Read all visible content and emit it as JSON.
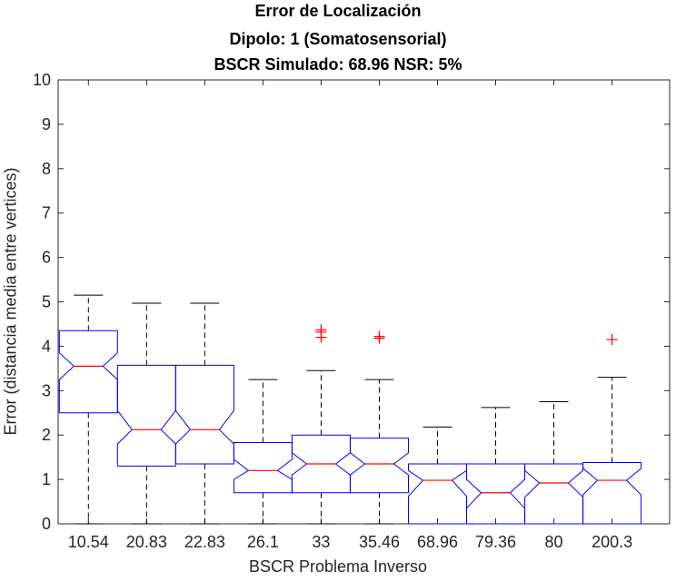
{
  "chart_data": {
    "type": "box",
    "title_lines": [
      "Error de Localización",
      "Dipolo: 1 (Somatosensorial)",
      "BSCR Simulado: 68.96 NSR: 5%"
    ],
    "xlabel": "BSCR Problema Inverso",
    "ylabel": "Error (distancia media entre vertices)",
    "ylim": [
      0,
      10
    ],
    "yticks": [
      0,
      1,
      2,
      3,
      4,
      5,
      6,
      7,
      8,
      9,
      10
    ],
    "categories": [
      "10.54",
      "20.83",
      "22.83",
      "26.1",
      "33",
      "35.46",
      "68.96",
      "79.36",
      "80",
      "200.3"
    ],
    "boxes": [
      {
        "whisker_low": 0,
        "q1": 2.5,
        "notch_low": 3.25,
        "median": 3.55,
        "notch_high": 3.85,
        "q3": 4.35,
        "whisker_high": 5.15,
        "outliers": []
      },
      {
        "whisker_low": 0,
        "q1": 1.3,
        "notch_low": 1.8,
        "median": 2.12,
        "notch_high": 2.55,
        "q3": 3.57,
        "whisker_high": 4.97,
        "outliers": []
      },
      {
        "whisker_low": 0,
        "q1": 1.35,
        "notch_low": 1.8,
        "median": 2.12,
        "notch_high": 2.55,
        "q3": 3.57,
        "whisker_high": 4.97,
        "outliers": []
      },
      {
        "whisker_low": 0,
        "q1": 0.7,
        "notch_low": 1.0,
        "median": 1.2,
        "notch_high": 1.45,
        "q3": 1.83,
        "whisker_high": 3.25,
        "outliers": []
      },
      {
        "whisker_low": 0,
        "q1": 0.7,
        "notch_low": 1.1,
        "median": 1.35,
        "notch_high": 1.6,
        "q3": 2.0,
        "whisker_high": 3.45,
        "outliers": [
          4.37,
          4.32,
          4.2
        ]
      },
      {
        "whisker_low": 0,
        "q1": 0.7,
        "notch_low": 1.1,
        "median": 1.35,
        "notch_high": 1.6,
        "q3": 1.93,
        "whisker_high": 3.25,
        "outliers": [
          4.22,
          4.18
        ]
      },
      {
        "whisker_low": 0,
        "q1": 0,
        "notch_low": 0.62,
        "median": 0.98,
        "notch_high": 1.2,
        "q3": 1.35,
        "whisker_high": 2.18,
        "outliers": []
      },
      {
        "whisker_low": 0,
        "q1": 0,
        "notch_low": 0.35,
        "median": 0.7,
        "notch_high": 1.0,
        "q3": 1.35,
        "whisker_high": 2.62,
        "outliers": []
      },
      {
        "whisker_low": 0,
        "q1": 0,
        "notch_low": 0.6,
        "median": 0.92,
        "notch_high": 1.2,
        "q3": 1.35,
        "whisker_high": 2.75,
        "outliers": []
      },
      {
        "whisker_low": 0,
        "q1": 0,
        "notch_low": 0.65,
        "median": 0.98,
        "notch_high": 1.25,
        "q3": 1.38,
        "whisker_high": 3.3,
        "outliers": [
          4.15
        ]
      }
    ],
    "grid": false,
    "colors": {
      "box": "#0000ff",
      "median": "#ff0000",
      "whisker": "#000000",
      "outlier": "#ff0000",
      "axis": "#262626"
    }
  }
}
